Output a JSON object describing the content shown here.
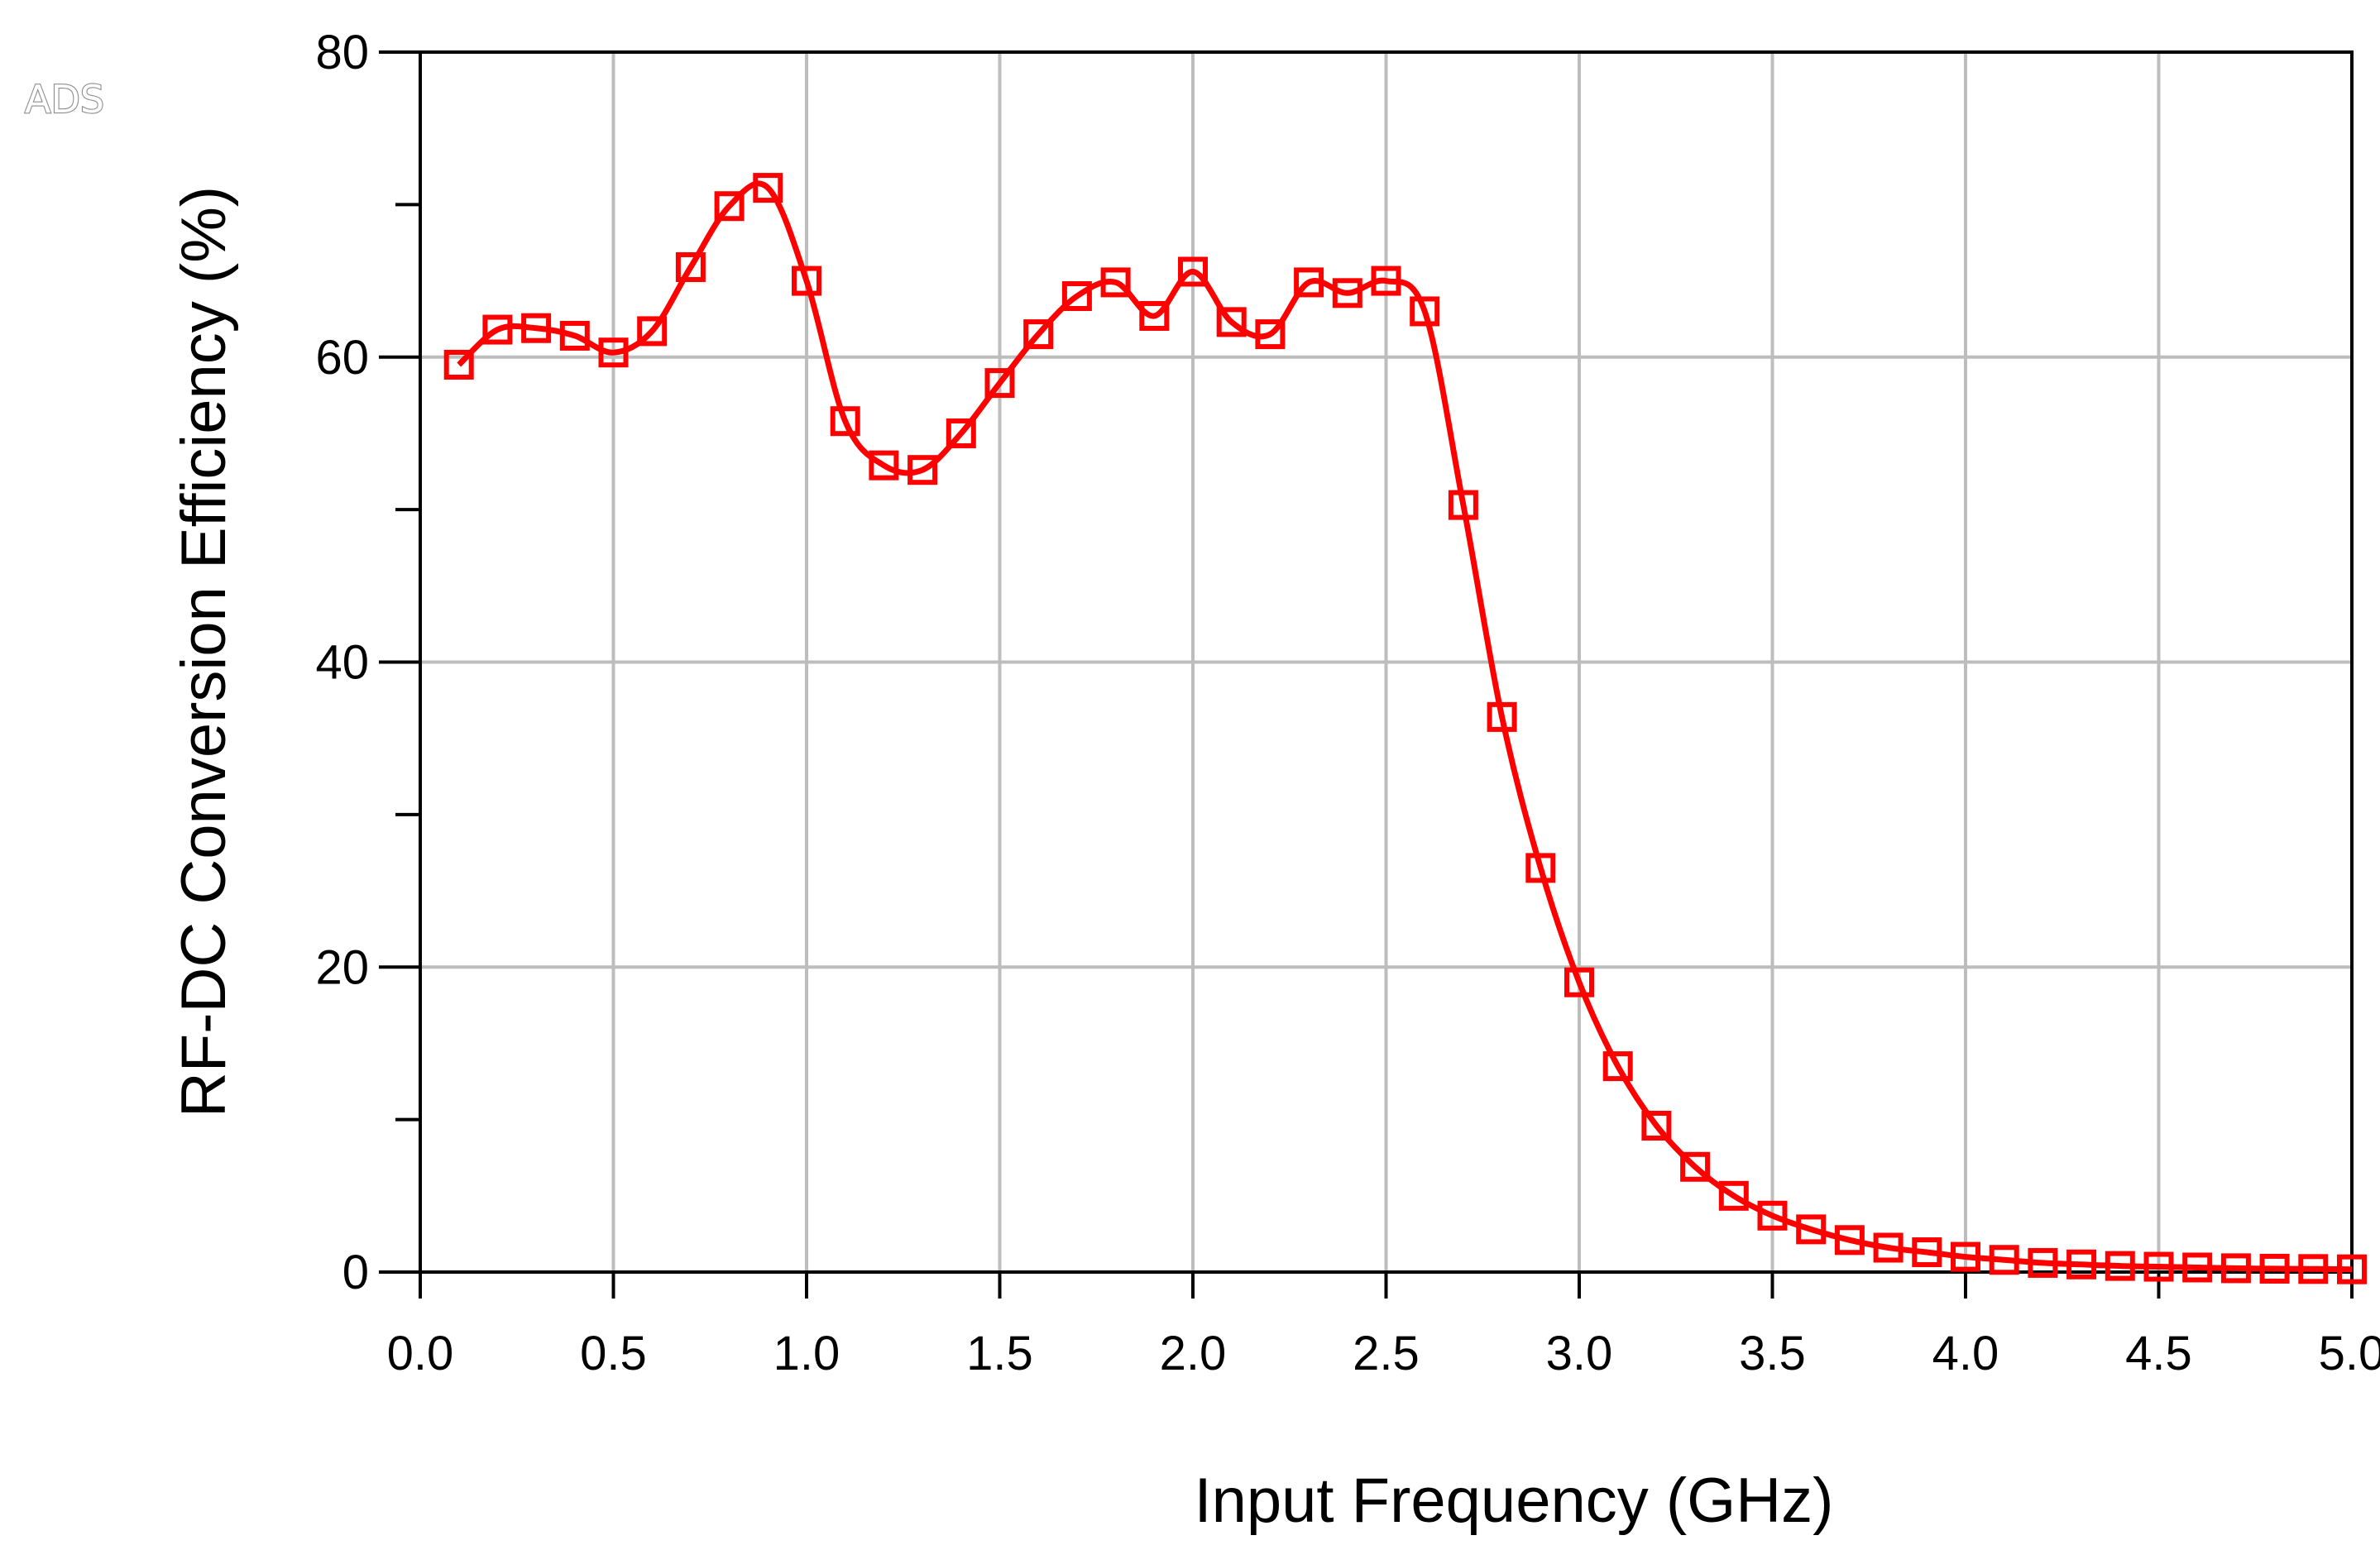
{
  "watermark": "ADS",
  "chart_data": {
    "type": "line",
    "title": "",
    "xlabel": "Input Frequency (GHz)",
    "ylabel": "RF-DC Conversion Efficiency (%)",
    "xlim": [
      0.0,
      5.0
    ],
    "ylim": [
      0,
      80
    ],
    "x_ticks": [
      0.0,
      0.5,
      1.0,
      1.5,
      2.0,
      2.5,
      3.0,
      3.5,
      4.0,
      4.5,
      5.0
    ],
    "x_tick_labels": [
      "0.0",
      "0.5",
      "1.0",
      "1.5",
      "2.0",
      "2.5",
      "3.0",
      "3.5",
      "4.0",
      "4.5",
      "5.0"
    ],
    "y_ticks": [
      0,
      20,
      40,
      60,
      80
    ],
    "y_tick_labels": [
      "0",
      "20",
      "40",
      "60",
      "80"
    ],
    "y_minor_ticks": [
      10,
      30,
      50,
      70
    ],
    "grid": true,
    "series_color": "#ff0000",
    "marker": "square",
    "series": [
      {
        "x": [
          0.1,
          0.2,
          0.3,
          0.4,
          0.5,
          0.6,
          0.7,
          0.8,
          0.9,
          1.0,
          1.1,
          1.2,
          1.3,
          1.4,
          1.5,
          1.6,
          1.7,
          1.8,
          1.9,
          2.0,
          2.1,
          2.2,
          2.3,
          2.4,
          2.5,
          2.6,
          2.7,
          2.8,
          2.9,
          3.0,
          3.1,
          3.2,
          3.3,
          3.4,
          3.5,
          3.6,
          3.7,
          3.8,
          3.9,
          4.0,
          4.1,
          4.2,
          4.3,
          4.4,
          4.5,
          4.6,
          4.7,
          4.8,
          4.9,
          5.0
        ],
        "values": [
          59.5,
          61.8,
          61.9,
          61.4,
          60.3,
          61.7,
          65.9,
          69.9,
          71.1,
          65.0,
          55.8,
          52.9,
          52.6,
          55.0,
          58.3,
          61.5,
          64.0,
          64.9,
          62.7,
          65.6,
          62.3,
          61.5,
          64.9,
          64.2,
          65.0,
          63.0,
          50.3,
          36.4,
          26.5,
          19.0,
          13.5,
          9.6,
          6.9,
          5.0,
          3.7,
          2.8,
          2.1,
          1.6,
          1.3,
          1.0,
          0.8,
          0.6,
          0.5,
          0.4,
          0.35,
          0.3,
          0.25,
          0.22,
          0.2,
          0.18
        ]
      }
    ]
  }
}
